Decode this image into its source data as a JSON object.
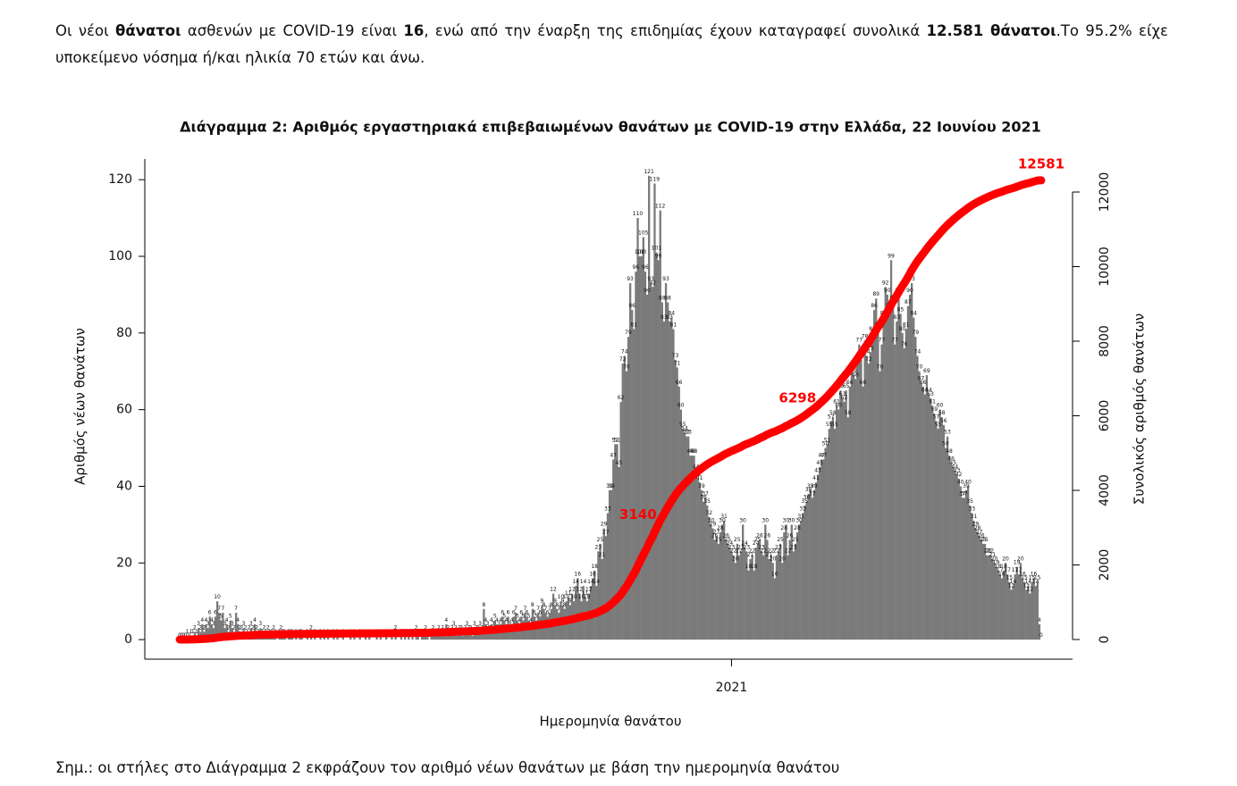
{
  "intro": [
    "Οι νέοι ",
    "θάνατοι",
    " ασθενών με COVID-19 είναι ",
    "16",
    ", ενώ από την έναρξη της επιδημίας έχουν καταγραφεί συνολικά ",
    "12.581 θάνατοι",
    ".Το 95.2% είχε υποκείμενο νόσημα ή/και ηλικία 70 ετών και άνω."
  ],
  "chart_data": {
    "type": "bar",
    "title": "Διάγραμμα 2: Αριθμός εργαστηριακά επιβεβαιωμένων θανάτων με COVID-19 στην Ελλάδα, 22 Ιουνίου 2021",
    "xlabel": "Ημερομηνία θανάτου",
    "ylabel": "Αριθμός νέων θανάτων",
    "y2label": "Συνολικός αριθμός θανάτων",
    "color": "#7a7a7a",
    "cumulative_color": "#ff0000",
    "ylim": [
      -5.1,
      125.4
    ],
    "yticks": [
      0,
      20,
      40,
      60,
      80,
      100,
      120
    ],
    "y2lim": [
      -527,
      12886
    ],
    "y2ticks": [
      0,
      2000,
      4000,
      6000,
      8000,
      10000,
      12000
    ],
    "annotations": [
      3140,
      6298,
      12581
    ],
    "categories": [
      null,
      null,
      null,
      null,
      null,
      null,
      null,
      null,
      null,
      null,
      null,
      null,
      null,
      null,
      null,
      null,
      null,
      null,
      null,
      null,
      null,
      null,
      null,
      null,
      null,
      null,
      null,
      null,
      null,
      null,
      null,
      null,
      null,
      null,
      null,
      null,
      null,
      null,
      null,
      null,
      null,
      null,
      null,
      null,
      null,
      null,
      null,
      null,
      null,
      null,
      null,
      null,
      null,
      null,
      null,
      null,
      null,
      null,
      null,
      null,
      null,
      null,
      null,
      null,
      null,
      null,
      null,
      null,
      null,
      null,
      null,
      null,
      null,
      null,
      null,
      null,
      null,
      null,
      null,
      null,
      null,
      null,
      null,
      null,
      null,
      null,
      null,
      null,
      null,
      null,
      null,
      null,
      null,
      null,
      null,
      null,
      null,
      null,
      null,
      null,
      null,
      null,
      null,
      null,
      null,
      null,
      null,
      null,
      null,
      null,
      null,
      null,
      null,
      null,
      null,
      null,
      null,
      null,
      null,
      null,
      null,
      null,
      null,
      null,
      null,
      null,
      null,
      null,
      null,
      null,
      null,
      null,
      null,
      null,
      null,
      null,
      null,
      null,
      null,
      null,
      null,
      null,
      null,
      null,
      null,
      null,
      null,
      null,
      null,
      null,
      null,
      null,
      null,
      null,
      null,
      null,
      null,
      null,
      null,
      null,
      null,
      null,
      null,
      null,
      null,
      null,
      null,
      null,
      null,
      null,
      null,
      null,
      null,
      null,
      null,
      null,
      null,
      null,
      null,
      null,
      null,
      null,
      null,
      null,
      null,
      null,
      null,
      null,
      null,
      null,
      null,
      null,
      null,
      null,
      null,
      null,
      null,
      null,
      null,
      null,
      null,
      null,
      null,
      null,
      null,
      null,
      null,
      null,
      null,
      null,
      null,
      null,
      null,
      null,
      null,
      null,
      null,
      null,
      null,
      null,
      null,
      null,
      null,
      null,
      null,
      null,
      null,
      null,
      null,
      null,
      null,
      null,
      null,
      null,
      null,
      null,
      null,
      null,
      null,
      null,
      null,
      null,
      null,
      null,
      null,
      null,
      null,
      null,
      null,
      null,
      null,
      null,
      null,
      null,
      null,
      null,
      null,
      null,
      null,
      null,
      null,
      null,
      null,
      null,
      null,
      null,
      null,
      null,
      null,
      null,
      null,
      null,
      null,
      null,
      null,
      null,
      null,
      null,
      null,
      null,
      null,
      null,
      null,
      null,
      null,
      null,
      null,
      null,
      null,
      null,
      null,
      null,
      null,
      null,
      "2021",
      null,
      null,
      null,
      null,
      null,
      null,
      null,
      null,
      null,
      null,
      null,
      null,
      null,
      null,
      null,
      null,
      null,
      null,
      null,
      null,
      null,
      null,
      null,
      null,
      null,
      null,
      null,
      null,
      null,
      null,
      null,
      null,
      null,
      null,
      null,
      null,
      null,
      null,
      null,
      null,
      null,
      null,
      null,
      null,
      null,
      null,
      null,
      null,
      null,
      null,
      null,
      null,
      null,
      null,
      null,
      null,
      null,
      null,
      null,
      null,
      null,
      null,
      null,
      null,
      null,
      null,
      null,
      null,
      null,
      null,
      null,
      null,
      null,
      null,
      null,
      null,
      null,
      null,
      null,
      null,
      null,
      null,
      null,
      null,
      null,
      null,
      null,
      null,
      null,
      null,
      null,
      null,
      null,
      null,
      null,
      null,
      null,
      null,
      null,
      null,
      null,
      null,
      null,
      null,
      null,
      null,
      null,
      null,
      null,
      null,
      null,
      null,
      null,
      null,
      null,
      null,
      null,
      null,
      null,
      null,
      null,
      null,
      null,
      null,
      null,
      null,
      null,
      null,
      null,
      null,
      null,
      null,
      null,
      null,
      null,
      null,
      null,
      null,
      null,
      null,
      null,
      null,
      null,
      null,
      null,
      null,
      null,
      null,
      null,
      null,
      null,
      null,
      null,
      null,
      null,
      null,
      null,
      null,
      null,
      null,
      null,
      null,
      null,
      null,
      null
    ],
    "values": [
      0,
      0,
      0,
      0,
      1,
      0,
      1,
      1,
      2,
      1,
      3,
      2,
      4,
      2,
      4,
      3,
      6,
      4,
      3,
      6,
      10,
      7,
      5,
      7,
      3,
      4,
      2,
      5,
      3,
      2,
      7,
      4,
      2,
      2,
      3,
      2,
      1,
      2,
      3,
      2,
      4,
      2,
      1,
      3,
      1,
      2,
      1,
      2,
      1,
      1,
      2,
      1,
      0,
      1,
      2,
      1,
      1,
      0,
      1,
      1,
      1,
      0,
      1,
      0,
      1,
      1,
      0,
      0,
      1,
      0,
      2,
      0,
      1,
      0,
      0,
      1,
      0,
      1,
      0,
      1,
      0,
      0,
      1,
      0,
      1,
      0,
      0,
      1,
      0,
      0,
      0,
      1,
      0,
      1,
      0,
      0,
      1,
      0,
      0,
      1,
      0,
      1,
      0,
      0,
      0,
      1,
      0,
      1,
      0,
      0,
      1,
      0,
      0,
      1,
      0,
      2,
      0,
      0,
      1,
      0,
      1,
      0,
      1,
      0,
      1,
      0,
      2,
      1,
      0,
      1,
      1,
      2,
      1,
      0,
      1,
      2,
      1,
      1,
      2,
      1,
      2,
      1,
      4,
      2,
      1,
      2,
      3,
      2,
      1,
      2,
      2,
      1,
      2,
      3,
      2,
      2,
      1,
      3,
      2,
      2,
      3,
      2,
      8,
      4,
      3,
      2,
      4,
      3,
      5,
      4,
      3,
      4,
      6,
      5,
      4,
      6,
      3,
      4,
      6,
      7,
      5,
      4,
      6,
      5,
      7,
      6,
      5,
      4,
      8,
      6,
      5,
      7,
      6,
      9,
      8,
      7,
      6,
      7,
      8,
      12,
      9,
      8,
      7,
      10,
      9,
      8,
      10,
      11,
      9,
      12,
      10,
      14,
      16,
      12,
      10,
      14,
      11,
      10,
      12,
      14,
      16,
      18,
      14,
      23,
      25,
      21,
      29,
      27,
      33,
      39,
      39,
      47,
      51,
      51,
      45,
      62,
      72,
      74,
      70,
      79,
      93,
      86,
      81,
      96,
      110,
      100,
      100,
      105,
      96,
      90,
      121,
      93,
      92,
      119,
      101,
      99,
      112,
      88,
      83,
      93,
      88,
      83,
      84,
      81,
      73,
      71,
      66,
      60,
      55,
      54,
      53,
      53,
      48,
      48,
      48,
      44,
      42,
      41,
      39,
      36,
      37,
      35,
      32,
      30,
      29,
      26,
      27,
      25,
      28,
      30,
      31,
      26,
      25,
      24,
      23,
      22,
      20,
      25,
      22,
      23,
      30,
      24,
      23,
      18,
      21,
      22,
      18,
      24,
      25,
      26,
      23,
      22,
      30,
      26,
      21,
      22,
      20,
      16,
      22,
      23,
      25,
      20,
      28,
      30,
      22,
      26,
      30,
      23,
      25,
      28,
      30,
      31,
      33,
      35,
      36,
      38,
      39,
      37,
      39,
      41,
      43,
      45,
      47,
      47,
      50,
      51,
      55,
      57,
      58,
      55,
      61,
      60,
      65,
      63,
      62,
      65,
      58,
      66,
      70,
      69,
      68,
      72,
      77,
      73,
      66,
      78,
      74,
      72,
      75,
      80,
      86,
      89,
      81,
      70,
      77,
      84,
      92,
      90,
      86,
      99,
      88,
      77,
      83,
      90,
      85,
      80,
      76,
      81,
      87,
      90,
      93,
      84,
      79,
      74,
      70,
      67,
      66,
      64,
      69,
      64,
      63,
      61,
      59,
      57,
      55,
      60,
      58,
      56,
      50,
      53,
      48,
      46,
      45,
      44,
      43,
      42,
      40,
      37,
      37,
      39,
      40,
      35,
      33,
      31,
      29,
      28,
      27,
      26,
      25,
      25,
      22,
      22,
      22,
      21,
      20,
      19,
      18,
      17,
      16,
      18,
      20,
      17,
      15,
      13,
      14,
      17,
      19,
      17,
      20,
      16,
      15,
      13,
      14,
      12,
      15,
      16,
      14,
      15,
      4,
      0
    ]
  },
  "note": "Σημ.: οι στήλες στο Διάγραμμα 2 εκφράζουν τον αριθμό νέων θανάτων με βάση την ημερομηνία θανάτου"
}
